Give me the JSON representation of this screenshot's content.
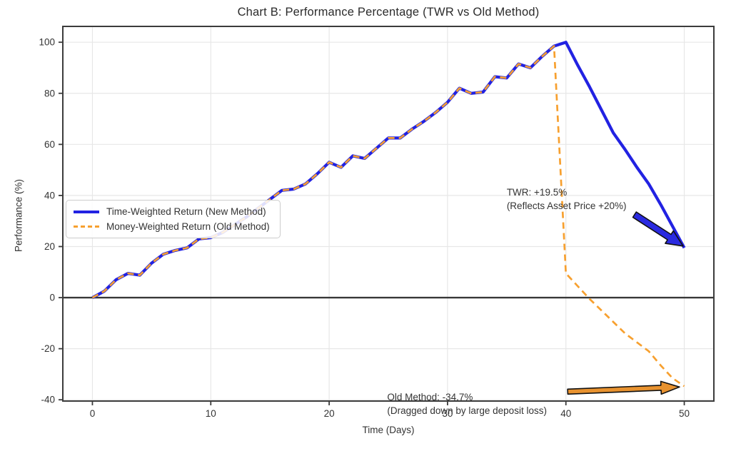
{
  "chart_data": {
    "type": "line",
    "title": "Chart B: Performance Percentage (TWR vs Old Method)",
    "xlabel": "Time (Days)",
    "ylabel": "Performance (%)",
    "xlim": [
      -2.5,
      52.5
    ],
    "ylim": [
      -40.5,
      106.2
    ],
    "xticks": [
      0,
      10,
      20,
      30,
      40,
      50
    ],
    "yticks": [
      -40,
      -20,
      0,
      20,
      40,
      60,
      80,
      100
    ],
    "grid": true,
    "grid_color": "#e7e7e7",
    "zero_line_color": "#383838",
    "spine_color": "#3c3c3c",
    "legend_position": "center-left",
    "series": [
      {
        "name": "Time-Weighted Return (New Method)",
        "style": "solid",
        "color": "#2222e2",
        "width": 4.2,
        "x": [
          0,
          1,
          2,
          3,
          4,
          5,
          6,
          7,
          8,
          9,
          10,
          11,
          12,
          13,
          14,
          15,
          16,
          17,
          18,
          19,
          20,
          21,
          22,
          23,
          24,
          25,
          26,
          27,
          28,
          29,
          30,
          31,
          32,
          33,
          34,
          35,
          36,
          37,
          38,
          39,
          40,
          41,
          42,
          43,
          44,
          45,
          46,
          47,
          48,
          49,
          50
        ],
        "y": [
          0,
          2.5,
          7,
          9.5,
          8.8,
          13.5,
          17,
          18.5,
          19.5,
          23,
          23.5,
          25.5,
          28.5,
          31.5,
          35,
          38.5,
          42,
          42.5,
          44.5,
          48.5,
          53,
          51,
          55.5,
          54.5,
          58.5,
          62.5,
          62.5,
          66,
          69,
          72.5,
          76.5,
          82,
          80,
          80.5,
          86.5,
          86,
          91.5,
          90,
          94.5,
          98.5,
          100,
          91,
          82.5,
          73.5,
          64.5,
          58,
          51,
          44.5,
          36.5,
          28,
          19.5
        ]
      },
      {
        "name": "Money-Weighted Return (Old Method)",
        "style": "dashed",
        "color": "#f7a02f",
        "width": 2.7,
        "x": [
          0,
          1,
          2,
          3,
          4,
          5,
          6,
          7,
          8,
          9,
          10,
          11,
          12,
          13,
          14,
          15,
          16,
          17,
          18,
          19,
          20,
          21,
          22,
          23,
          24,
          25,
          26,
          27,
          28,
          29,
          30,
          31,
          32,
          33,
          34,
          35,
          36,
          37,
          38,
          39,
          40,
          41,
          42,
          43,
          44,
          45,
          46,
          47,
          48,
          49,
          50
        ],
        "y": [
          0,
          2.5,
          7,
          9.5,
          8.8,
          13.5,
          17,
          18.5,
          19.5,
          23,
          23.5,
          25.5,
          28.5,
          31.5,
          35,
          38.5,
          42,
          42.5,
          44.5,
          48.5,
          53,
          51,
          55.5,
          54.5,
          58.5,
          62.5,
          62.5,
          66,
          69,
          72.5,
          76.5,
          82,
          80,
          80.5,
          86.5,
          86,
          91.5,
          90,
          94.5,
          98.5,
          9.5,
          4.5,
          -0.5,
          -5,
          -9.5,
          -14,
          -17.5,
          -21,
          -26.5,
          -31.5,
          -34.7
        ]
      }
    ],
    "end_values": {
      "twr_final": "+19.5%",
      "old_method_final": "-34.7%"
    },
    "annotations": [
      {
        "id": "twr",
        "text": "TWR: +19.5%\n(Reflects Asset Price +20%)",
        "x": 35.0,
        "y": 43.8
      },
      {
        "id": "old-method",
        "text": "Old Method: -34.7%\n(Dragged down by large deposit loss)",
        "x": 24.9,
        "y": -36.3
      }
    ],
    "arrows": [
      {
        "id": "twr-arrow",
        "fill": "#2a2ae0",
        "outline": "#111111",
        "from": [
          45.8,
          32.5
        ],
        "to": [
          49.9,
          20.2
        ],
        "shaft": 9,
        "head_len": 23,
        "head_w": 21
      },
      {
        "id": "old-method-arrow",
        "fill": "#e8922f",
        "outline": "#111111",
        "from": [
          40.15,
          -36.8
        ],
        "to": [
          49.6,
          -35.0
        ],
        "shaft": 7,
        "head_len": 26,
        "head_w": 18
      }
    ]
  }
}
